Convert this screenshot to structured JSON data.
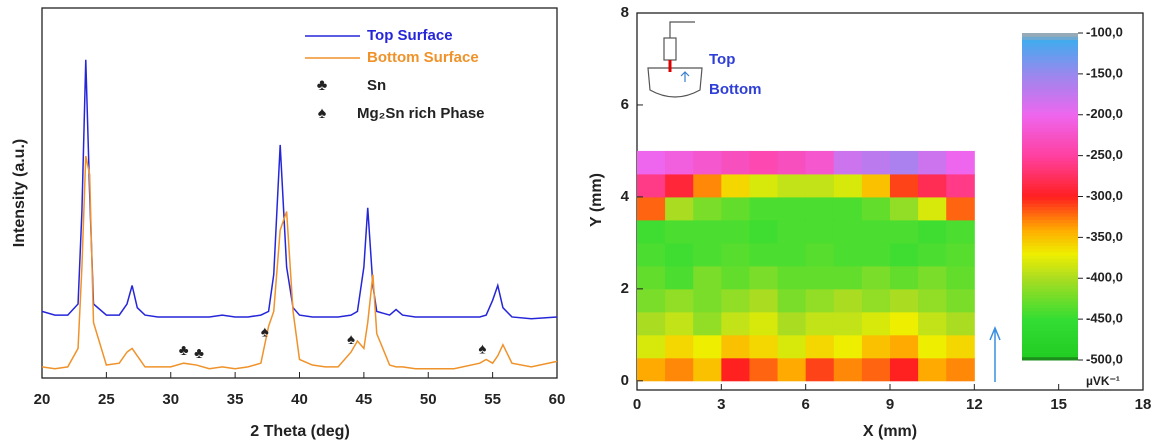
{
  "chart_data": [
    {
      "type": "line",
      "xlabel": "2 Theta (deg)",
      "ylabel": "Intensity (a.u.)",
      "x": [
        20,
        21,
        22,
        22.8,
        23.1,
        23.4,
        23.7,
        24,
        25,
        26,
        26.6,
        27,
        27.4,
        28,
        29,
        30,
        31,
        32,
        33,
        34,
        35,
        36,
        37,
        37.6,
        38,
        38.5,
        39,
        39.5,
        40,
        41,
        42,
        43,
        44,
        44.5,
        45,
        45.3,
        45.7,
        46,
        47,
        47.5,
        48,
        49,
        50,
        52,
        54,
        54.5,
        55,
        55.4,
        55.8,
        56.5,
        58,
        60
      ],
      "series": [
        {
          "name": "Top Surface",
          "color": "#2626d9",
          "values": [
            18,
            17,
            17,
            20,
            45,
            86,
            50,
            20,
            17,
            17,
            20,
            25,
            19,
            17,
            16.5,
            16.5,
            16.5,
            16.5,
            16.5,
            17,
            16.5,
            16.5,
            17,
            18,
            28,
            63,
            30,
            19,
            17,
            16.5,
            16.5,
            16.5,
            17,
            18,
            30,
            46,
            25,
            18,
            17,
            18.5,
            17,
            16.5,
            16.5,
            16.5,
            16.5,
            17,
            21,
            25,
            19,
            16.5,
            16,
            16.5
          ]
        },
        {
          "name": "Bottom Surface",
          "color": "#f0922a",
          "values": [
            3,
            2.5,
            3,
            8,
            30,
            60,
            55,
            15,
            3.5,
            4,
            7,
            8,
            6,
            3,
            3,
            3,
            4,
            3.5,
            2.5,
            3,
            2.5,
            3,
            4,
            14,
            18,
            40,
            45,
            18,
            5,
            3.5,
            3,
            3,
            7,
            10,
            8,
            15,
            28,
            12,
            3.5,
            3,
            3,
            2.5,
            2.5,
            2.5,
            4,
            5,
            4,
            6,
            9,
            4,
            3,
            4.5
          ]
        }
      ],
      "xlim": [
        20,
        60
      ],
      "ylim": [
        0,
        100
      ],
      "xticks": [
        20,
        25,
        30,
        35,
        40,
        45,
        50,
        55,
        60
      ],
      "legend_symbols": [
        {
          "symbol": "♣",
          "label": "Sn"
        },
        {
          "symbol": "♠",
          "label": "Mg₂Sn rich Phase"
        }
      ],
      "markers": [
        {
          "symbol": "♣",
          "x": 31
        },
        {
          "symbol": "♣",
          "x": 32.2
        },
        {
          "symbol": "♠",
          "x": 37.3
        },
        {
          "symbol": "♠",
          "x": 44
        },
        {
          "symbol": "♠",
          "x": 54.2
        }
      ]
    },
    {
      "type": "heatmap",
      "xlabel": "X (mm)",
      "ylabel": "Y (mm)",
      "xlim": [
        0,
        18
      ],
      "ylim": [
        -0.2,
        8
      ],
      "xticks": [
        0,
        3,
        6,
        9,
        12,
        15,
        18
      ],
      "yticks": [
        0,
        2,
        4,
        6,
        8
      ],
      "x_edges": [
        0,
        1,
        2,
        3,
        4,
        5,
        6,
        7,
        8,
        9,
        10,
        11,
        12
      ],
      "y_edges": [
        0,
        0.5,
        1,
        1.5,
        2,
        2.5,
        3,
        3.5,
        4,
        4.5,
        5
      ],
      "z": [
        [
          -340,
          -330,
          -350,
          -300,
          -320,
          -340,
          -310,
          -330,
          -320,
          -300,
          -340,
          -330
        ],
        [
          -380,
          -360,
          -370,
          -350,
          -360,
          -380,
          -360,
          -370,
          -350,
          -340,
          -370,
          -360
        ],
        [
          -400,
          -390,
          -410,
          -390,
          -380,
          -400,
          -390,
          -390,
          -380,
          -370,
          -390,
          -400
        ],
        [
          -420,
          -410,
          -420,
          -410,
          -400,
          -420,
          -410,
          -400,
          -410,
          -400,
          -410,
          -420
        ],
        [
          -430,
          -440,
          -420,
          -430,
          -420,
          -430,
          -430,
          -430,
          -420,
          -430,
          -420,
          -430
        ],
        [
          -440,
          -445,
          -440,
          -435,
          -440,
          -440,
          -435,
          -440,
          -440,
          -445,
          -440,
          -435
        ],
        [
          -445,
          -440,
          -440,
          -440,
          -445,
          -440,
          -440,
          -440,
          -440,
          -440,
          -445,
          -440
        ],
        [
          -320,
          -400,
          -420,
          -430,
          -440,
          -440,
          -440,
          -440,
          -430,
          -410,
          -380,
          -320
        ],
        [
          -260,
          -290,
          -330,
          -360,
          -380,
          -390,
          -390,
          -380,
          -350,
          -310,
          -280,
          -260
        ],
        [
          -200,
          -210,
          -220,
          -230,
          -240,
          -230,
          -220,
          -180,
          -170,
          -160,
          -180,
          -200
        ]
      ],
      "colorscale": [
        {
          "value": -500,
          "color": "#111111"
        },
        {
          "value": -497,
          "color": "#22cc22"
        },
        {
          "value": -450,
          "color": "#33dd33"
        },
        {
          "value": -400,
          "color": "#aadd22"
        },
        {
          "value": -370,
          "color": "#eeee00"
        },
        {
          "value": -340,
          "color": "#ffaa00"
        },
        {
          "value": -300,
          "color": "#ff2020"
        },
        {
          "value": -250,
          "color": "#ff40a0"
        },
        {
          "value": -200,
          "color": "#ee66ee"
        },
        {
          "value": -150,
          "color": "#9988ee"
        },
        {
          "value": -110,
          "color": "#44aaee"
        },
        {
          "value": -100,
          "color": "#aaaaaa"
        }
      ],
      "colorbar_lim": [
        -500,
        -100
      ],
      "colorbar_ticks": [
        {
          "value": -500,
          "label": "-500,0"
        },
        {
          "value": -450,
          "label": "-450,0"
        },
        {
          "value": -400,
          "label": "-400,0"
        },
        {
          "value": -350,
          "label": "-350,0"
        },
        {
          "value": -300,
          "label": "-300,0"
        },
        {
          "value": -250,
          "label": "-250,0"
        },
        {
          "value": -200,
          "label": "-200,0"
        },
        {
          "value": -150,
          "label": "-150,0"
        },
        {
          "value": -100,
          "label": "-100,0"
        }
      ],
      "colorbar_unit": "µVK⁻¹",
      "annotations": [
        "Top",
        "Bottom"
      ]
    }
  ]
}
